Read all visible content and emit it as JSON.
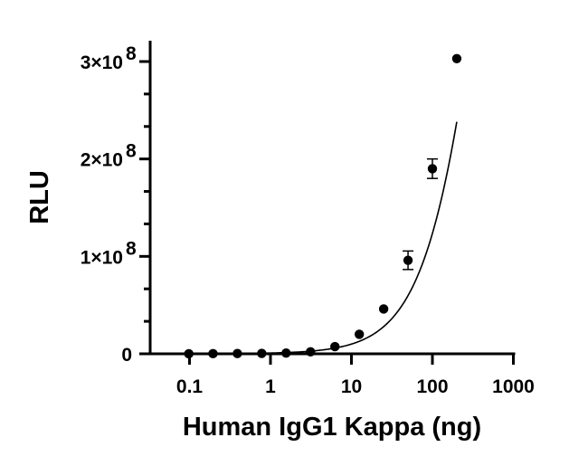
{
  "chart_data": {
    "type": "scatter",
    "title": "",
    "xlabel": "Human IgG1 Kappa (ng)",
    "ylabel": "RLU",
    "xscale": "log",
    "xlim": [
      0.05,
      1000
    ],
    "ylim": [
      0,
      300000000
    ],
    "x_ticks": [
      0.1,
      1,
      10,
      100,
      1000
    ],
    "x_tick_labels": [
      "0.1",
      "1",
      "10",
      "100",
      "1000"
    ],
    "y_ticks": [
      0,
      100000000,
      200000000,
      300000000
    ],
    "y_tick_labels": [
      {
        "base": "0",
        "exp": ""
      },
      {
        "base": "1×10",
        "exp": "8"
      },
      {
        "base": "2×10",
        "exp": "8"
      },
      {
        "base": "3×10",
        "exp": "8"
      }
    ],
    "y_minor_ticks": [
      33333333,
      66666667,
      133333333,
      166666667,
      233333333,
      266666667
    ],
    "grid": false,
    "legend": null,
    "series": [
      {
        "name": "Human IgG1 Kappa",
        "marker": "circle",
        "color": "#000000",
        "fit": "sigmoidal curve",
        "x": [
          0.098,
          0.195,
          0.39,
          0.78,
          1.56,
          3.125,
          6.25,
          12.5,
          25,
          50,
          100,
          200
        ],
        "y": [
          100000,
          150000,
          250000,
          400000,
          800000,
          2000000,
          7400000,
          20000000,
          46000000,
          96000000,
          190000000,
          303000000
        ],
        "error": [
          0,
          0,
          0,
          0,
          0,
          0,
          0,
          0,
          0,
          9500000,
          10000000,
          0
        ]
      }
    ]
  }
}
